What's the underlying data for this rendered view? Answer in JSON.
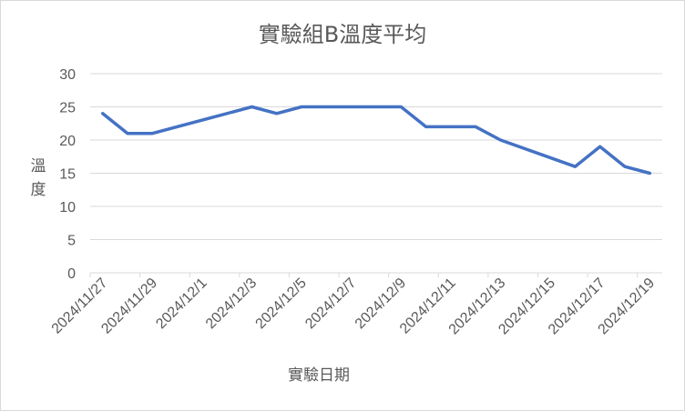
{
  "chart_data": {
    "type": "line",
    "title": "實驗組B溫度平均",
    "xlabel": "實驗日期",
    "ylabel": "溫度",
    "ylim": [
      0,
      30
    ],
    "yticks": [
      0,
      5,
      10,
      15,
      20,
      25,
      30
    ],
    "grid": true,
    "legend": "none",
    "xtick_labels": [
      "2024/11/27",
      "2024/11/29",
      "2024/12/1",
      "2024/12/3",
      "2024/12/5",
      "2024/12/7",
      "2024/12/9",
      "2024/12/11",
      "2024/12/13",
      "2024/12/15",
      "2024/12/17",
      "2024/12/19"
    ],
    "series": [
      {
        "color": "#4472c4",
        "x": [
          "2024/11/27",
          "2024/11/28",
          "2024/11/29",
          "2024/12/3",
          "2024/12/4",
          "2024/12/5",
          "2024/12/9",
          "2024/12/10",
          "2024/12/12",
          "2024/12/13",
          "2024/12/16",
          "2024/12/17",
          "2024/12/18",
          "2024/12/19"
        ],
        "values": [
          24,
          21,
          21,
          25,
          24,
          25,
          25,
          22,
          22,
          20,
          16,
          19,
          16,
          15
        ]
      }
    ]
  }
}
